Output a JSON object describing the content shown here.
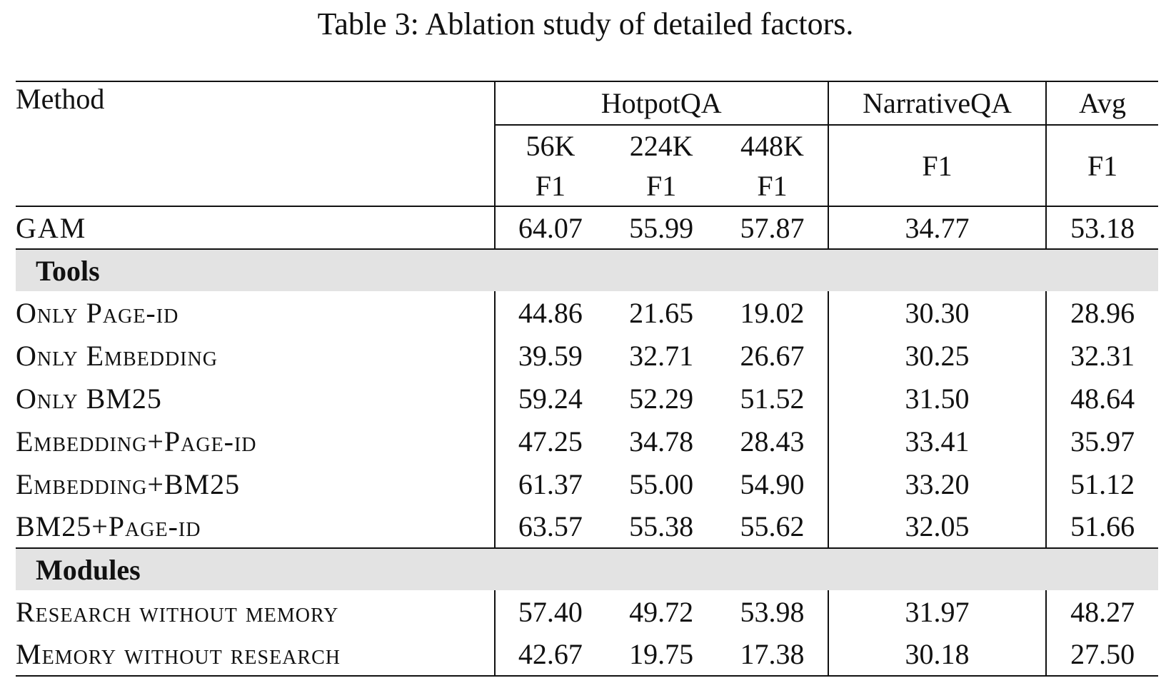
{
  "caption": "Table 3: Ablation study of detailed factors.",
  "header": {
    "method": "Method",
    "groups": {
      "hotpotqa": "HotpotQA",
      "narrativeqa": "NarrativeQA",
      "avg": "Avg"
    },
    "hotpot_subcolumns": [
      {
        "size": "56K",
        "metric": "F1"
      },
      {
        "size": "224K",
        "metric": "F1"
      },
      {
        "size": "448K",
        "metric": "F1"
      }
    ],
    "narrativeqa_metric": "F1",
    "avg_metric": "F1"
  },
  "baseline": {
    "name": "GAM",
    "values": [
      "64.07",
      "55.99",
      "57.87",
      "34.77",
      "53.18"
    ]
  },
  "sections": [
    {
      "title": "Tools",
      "rows": [
        {
          "name": "Only Page-id",
          "values": [
            "44.86",
            "21.65",
            "19.02",
            "30.30",
            "28.96"
          ]
        },
        {
          "name": "Only Embedding",
          "values": [
            "39.59",
            "32.71",
            "26.67",
            "30.25",
            "32.31"
          ]
        },
        {
          "name": "Only BM25",
          "values": [
            "59.24",
            "52.29",
            "51.52",
            "31.50",
            "48.64"
          ]
        },
        {
          "name": "Embedding+Page-id",
          "values": [
            "47.25",
            "34.78",
            "28.43",
            "33.41",
            "35.97"
          ]
        },
        {
          "name": "Embedding+BM25",
          "values": [
            "61.37",
            "55.00",
            "54.90",
            "33.20",
            "51.12"
          ]
        },
        {
          "name": "BM25+Page-id",
          "values": [
            "63.57",
            "55.38",
            "55.62",
            "32.05",
            "51.66"
          ]
        }
      ]
    },
    {
      "title": "Modules",
      "rows": [
        {
          "name": "Research without memory",
          "values": [
            "57.40",
            "49.72",
            "53.98",
            "31.97",
            "48.27"
          ]
        },
        {
          "name": "Memory without research",
          "values": [
            "42.67",
            "19.75",
            "17.38",
            "30.18",
            "27.50"
          ]
        }
      ]
    }
  ]
}
